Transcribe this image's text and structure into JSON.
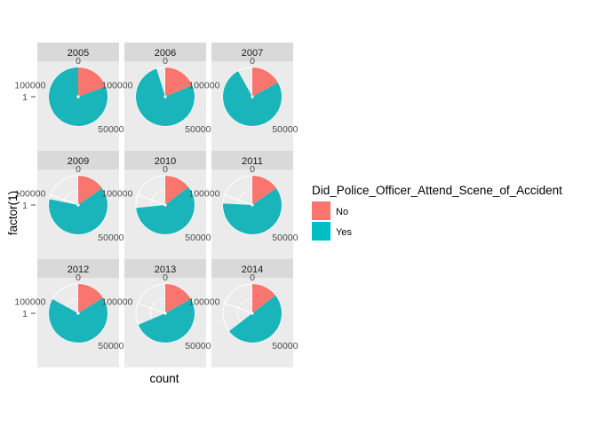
{
  "chart_data": {
    "type": "pie",
    "facet_variable": "year",
    "facets": [
      {
        "label": "2005",
        "series": [
          {
            "name": "No",
            "value": 24000
          },
          {
            "name": "Yes",
            "value": 100000
          }
        ]
      },
      {
        "label": "2006",
        "series": [
          {
            "name": "No",
            "value": 23000
          },
          {
            "name": "Yes",
            "value": 95000
          }
        ]
      },
      {
        "label": "2007",
        "series": [
          {
            "name": "No",
            "value": 21000
          },
          {
            "name": "Yes",
            "value": 93000
          }
        ]
      },
      {
        "label": "2009",
        "series": [
          {
            "name": "No",
            "value": 19000
          },
          {
            "name": "Yes",
            "value": 78000
          }
        ]
      },
      {
        "label": "2010",
        "series": [
          {
            "name": "No",
            "value": 18000
          },
          {
            "name": "Yes",
            "value": 73000
          }
        ]
      },
      {
        "label": "2011",
        "series": [
          {
            "name": "No",
            "value": 19000
          },
          {
            "name": "Yes",
            "value": 75000
          }
        ]
      },
      {
        "label": "2012",
        "series": [
          {
            "name": "No",
            "value": 20000
          },
          {
            "name": "Yes",
            "value": 83000
          }
        ]
      },
      {
        "label": "2013",
        "series": [
          {
            "name": "No",
            "value": 21000
          },
          {
            "name": "Yes",
            "value": 64000
          }
        ]
      },
      {
        "label": "2014",
        "series": [
          {
            "name": "No",
            "value": 18000
          },
          {
            "name": "Yes",
            "value": 62000
          }
        ]
      }
    ],
    "theta_max": 124000,
    "theta_ticks": [
      {
        "value": 0,
        "label": "0"
      },
      {
        "value": 50000,
        "label": "50000"
      },
      {
        "value": 100000,
        "label": "100000"
      }
    ],
    "y_tick_label": "1",
    "xlabel": "count",
    "ylabel": "factor(1)",
    "legend": {
      "title": "Did_Police_Officer_Attend_Scene_of_Accident",
      "position": "right",
      "entries": [
        {
          "name": "No",
          "color": "#F8766D"
        },
        {
          "name": "Yes",
          "color": "#00BFC4"
        }
      ]
    },
    "colors": {
      "No": "#F8766D",
      "Yes": "#1AB5BA"
    },
    "panel_background": "#EBEBEB",
    "strip_background": "#D9D9D9",
    "grid_color": "#FFFFFF",
    "grid": true
  }
}
